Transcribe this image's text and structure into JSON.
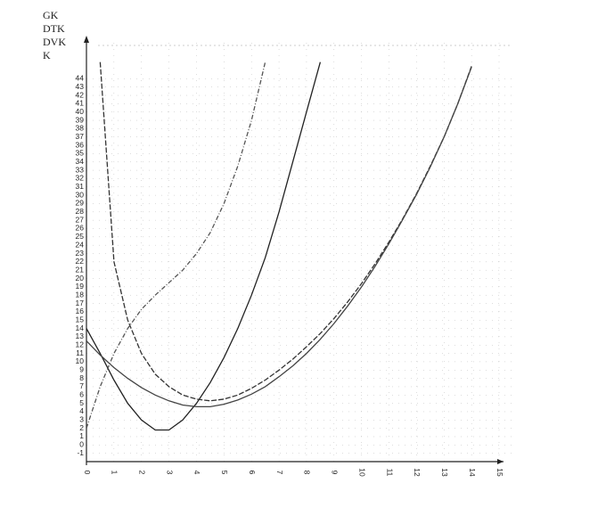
{
  "chart_data": {
    "type": "line",
    "x": [
      0,
      0.5,
      1,
      1.5,
      2,
      2.5,
      3,
      3.5,
      4,
      4.5,
      5,
      5.5,
      6,
      6.5,
      7,
      7.5,
      8,
      8.5,
      9,
      9.5,
      10,
      10.5,
      11,
      11.5,
      12,
      12.5,
      13,
      13.5,
      14
    ],
    "series": [
      {
        "name": "GK",
        "color": "#222222",
        "values": [
          14,
          11,
          7.8,
          5,
          3,
          1.8,
          1.8,
          3,
          5,
          7.5,
          10.5,
          14,
          18,
          22.5,
          28,
          34,
          40,
          46,
          null,
          null,
          null,
          null,
          null,
          null,
          null,
          null,
          null,
          null,
          null
        ]
      },
      {
        "name": "DTK",
        "color": "#333333",
        "values": [
          null,
          46,
          22,
          15,
          11,
          8.5,
          7,
          6,
          5.5,
          5.3,
          5.5,
          6,
          6.8,
          7.8,
          9,
          10.3,
          11.8,
          13.4,
          15.2,
          17.2,
          19.4,
          21.8,
          24.4,
          27.2,
          30.2,
          33.5,
          37,
          41,
          45.5
        ]
      },
      {
        "name": "DVK",
        "color": "#444444",
        "values": [
          12.5,
          10.8,
          9.3,
          8,
          6.9,
          6,
          5.3,
          4.8,
          4.6,
          4.6,
          4.9,
          5.4,
          6.1,
          7,
          8.2,
          9.5,
          11,
          12.7,
          14.6,
          16.7,
          19,
          21.5,
          24.2,
          27.1,
          30.1,
          33.4,
          37,
          41,
          45.4
        ]
      },
      {
        "name": "K",
        "color": "#555555",
        "values": [
          2,
          7,
          11,
          14,
          16.3,
          18,
          19.5,
          21,
          23,
          25.5,
          29,
          33.5,
          39,
          46,
          null,
          null,
          null,
          null,
          null,
          null,
          null,
          null,
          null,
          null,
          null,
          null,
          null,
          null,
          null
        ]
      }
    ],
    "xlim": [
      0,
      15
    ],
    "ylim": [
      -2,
      48
    ],
    "xticks": [
      0,
      1,
      2,
      3,
      4,
      5,
      6,
      7,
      8,
      9,
      10,
      11,
      12,
      13,
      14,
      15
    ],
    "yticks": [
      -1,
      0,
      1,
      2,
      3,
      4,
      5,
      6,
      7,
      8,
      9,
      10,
      11,
      12,
      13,
      14,
      15,
      16,
      17,
      18,
      19,
      20,
      21,
      22,
      23,
      24,
      25,
      26,
      27,
      28,
      29,
      30,
      31,
      32,
      33,
      34,
      35,
      36,
      37,
      38,
      39,
      40,
      41,
      42,
      43,
      44
    ],
    "grid": true
  }
}
